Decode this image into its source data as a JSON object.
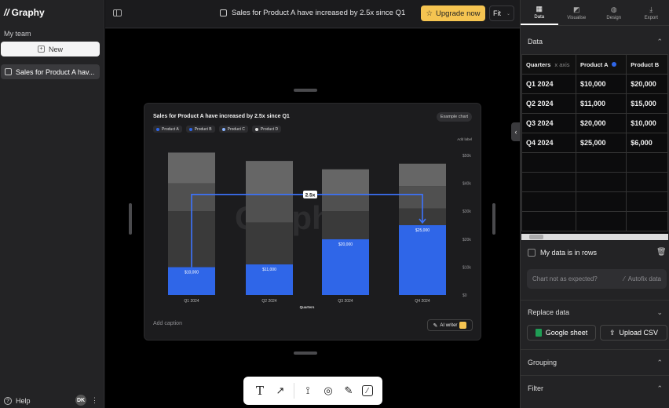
{
  "sidebar": {
    "logo": "Graphy",
    "team": "My team",
    "new_label": "New",
    "chart_item": "Sales for Product A hav...",
    "help": "Help",
    "avatar": "DK",
    "kebab": "⋮"
  },
  "topbar": {
    "title": "Sales for Product A have increased by 2.5x since Q1",
    "upgrade": "Upgrade now",
    "fit": "Fit"
  },
  "card": {
    "example": "Example chart",
    "add_label": "Add label",
    "caption": "Add caption",
    "ai_writer": "AI writer",
    "watermark": "Graphy"
  },
  "chart_data": {
    "type": "bar",
    "title": "Sales for Product A have increased by 2.5x since Q1",
    "stacked": true,
    "categories": [
      "Q1 2024",
      "Q2 2024",
      "Q3 2024",
      "Q4 2024"
    ],
    "series": [
      {
        "name": "Product A",
        "color": "#2f66e8",
        "values": [
          10000,
          11000,
          20000,
          25000
        ]
      },
      {
        "name": "Product B",
        "color": "#3a3a3a",
        "values": [
          20000,
          15000,
          10000,
          6000
        ]
      },
      {
        "name": "Product C",
        "color": "#505050",
        "values": [
          10000,
          10000,
          6000,
          8000
        ]
      },
      {
        "name": "Product D",
        "color": "#666666",
        "values": [
          11000,
          12000,
          9000,
          8000
        ]
      }
    ],
    "data_labels": [
      "$10,000",
      "$11,000",
      "$20,000",
      "$25,000"
    ],
    "y_ticks": [
      "$0",
      "$10k",
      "$20k",
      "$30k",
      "$40k",
      "$50k"
    ],
    "ylim": [
      0,
      50000
    ],
    "xlabel": "Quarters",
    "annotation": "2.5x"
  },
  "tools": [
    "text-tool",
    "arrow-tool",
    "shape-tool",
    "highlight-tool",
    "pen-tool",
    "trend-tool"
  ],
  "right": {
    "tabs": [
      {
        "label": "Data",
        "icon": "▦"
      },
      {
        "label": "Visualise",
        "icon": "◩"
      },
      {
        "label": "Design",
        "icon": "◍"
      },
      {
        "label": "Export",
        "icon": "⤓"
      }
    ],
    "data_section": "Data",
    "table": {
      "headers": [
        "Quarters",
        "x axis",
        "Product A",
        "Product B"
      ],
      "rows": [
        [
          "Q1 2024",
          "$10,000",
          "$20,000"
        ],
        [
          "Q2 2024",
          "$11,000",
          "$15,000"
        ],
        [
          "Q3 2024",
          "$20,000",
          "$10,000"
        ],
        [
          "Q4 2024",
          "$25,000",
          "$6,000"
        ]
      ]
    },
    "rows_label": "My data is in rows",
    "not_expected": "Chart not as expected?",
    "autofix": "Autofix data",
    "replace": "Replace data",
    "google": "Google sheet",
    "upload": "Upload CSV",
    "grouping": "Grouping",
    "filter": "Filter"
  }
}
